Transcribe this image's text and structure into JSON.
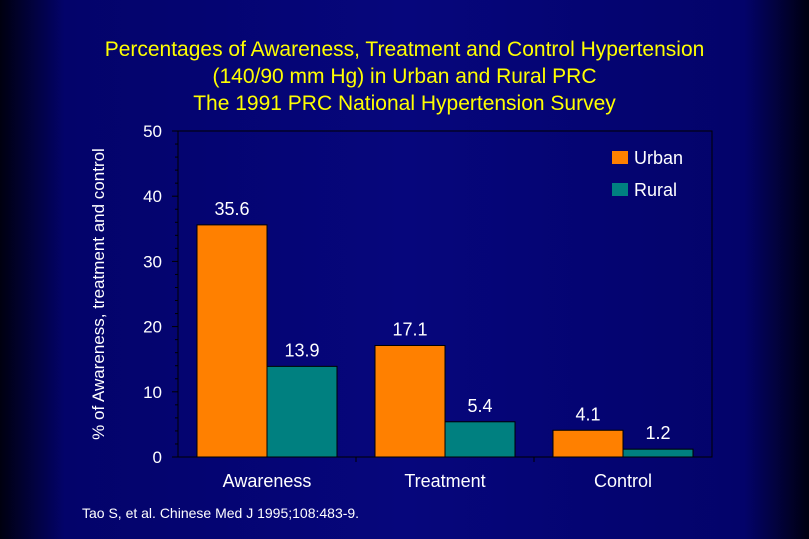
{
  "colors": {
    "background": "#06067c",
    "title": "#ffff00",
    "text": "#ffffff",
    "urban": "#ff8000",
    "rural": "#008080"
  },
  "title_lines": [
    "Percentages of Awareness, Treatment and Control Hypertension",
    "(140/90 mm Hg) in Urban and Rural PRC",
    "The 1991 PRC National Hypertension Survey"
  ],
  "citation": "Tao S, et al. Chinese Med J 1995;108:483-9.",
  "chart_data": {
    "type": "bar",
    "title": "Percentages of Awareness, Treatment and Control Hypertension (140/90 mm Hg) in Urban and Rural PRC The 1991 PRC National Hypertension Survey",
    "xlabel": "",
    "ylabel": "% of Awareness, treatment and control",
    "ylim": [
      0,
      50
    ],
    "yticks": [
      0,
      10,
      20,
      30,
      40,
      50
    ],
    "categories": [
      "Awareness",
      "Treatment",
      "Control"
    ],
    "series": [
      {
        "name": "Urban",
        "values": [
          35.6,
          17.1,
          4.1
        ],
        "labels": [
          "35.6",
          "17.1",
          "4.1"
        ],
        "color": "#ff8000"
      },
      {
        "name": "Rural",
        "values": [
          13.9,
          5.4,
          1.2
        ],
        "labels": [
          "13.9",
          "5.4",
          "1.2"
        ],
        "color": "#008080"
      }
    ],
    "legend": "top-right",
    "grid": false
  }
}
